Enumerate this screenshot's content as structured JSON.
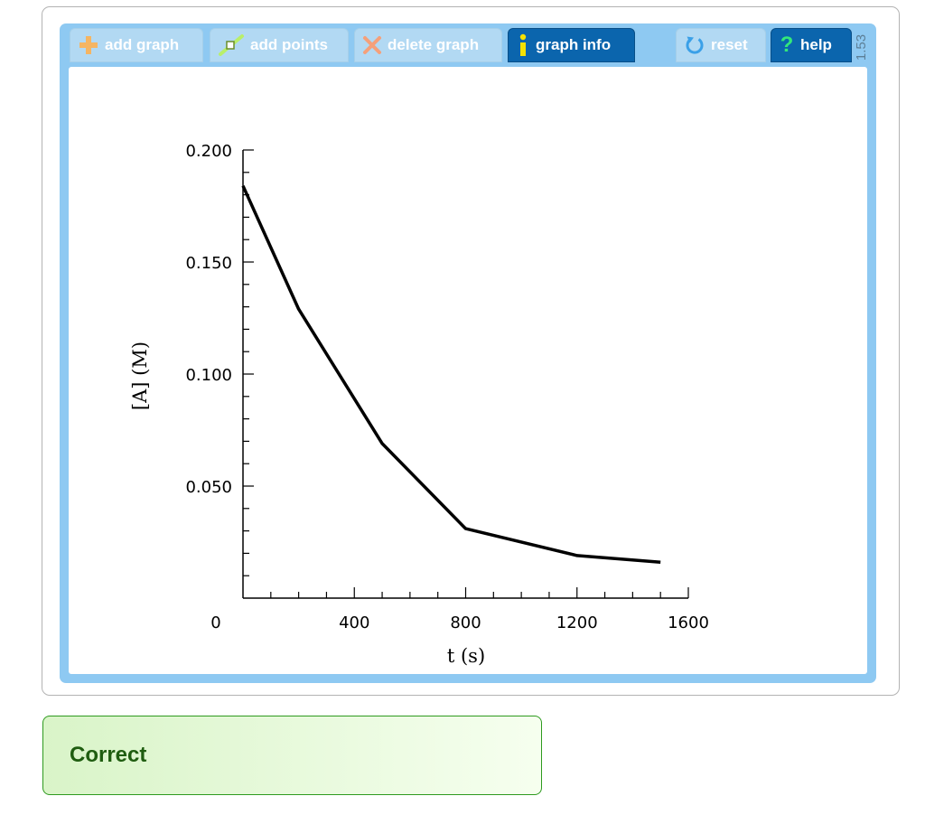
{
  "toolbar": {
    "buttons": [
      {
        "label": "add graph",
        "icon": "plus-icon",
        "state": "disabled"
      },
      {
        "label": "add points",
        "icon": "add-points-icon",
        "state": "disabled"
      },
      {
        "label": "delete graph",
        "icon": "x-icon",
        "state": "disabled"
      },
      {
        "label": "graph info",
        "icon": "info-icon",
        "state": "enabled"
      },
      {
        "label": "reset",
        "icon": "reset-icon",
        "state": "disabled"
      },
      {
        "label": "help",
        "icon": "question-icon",
        "state": "enabled"
      }
    ],
    "version": "1.53"
  },
  "colors": {
    "panel": "#8ec9f2",
    "active_button": "#0b65ad",
    "inactive_button": "#b2d9f3",
    "plus_icon": "#f5b562",
    "x_icon": "#f5a07a",
    "info_icon": "#f5e100",
    "question_icon": "#33e87a",
    "correct_border": "#2e9a1f",
    "correct_text": "#1f5d10"
  },
  "chart_data": {
    "type": "line",
    "xlabel": "t (s)",
    "ylabel": "[A] (M)",
    "x_ticks": [
      "0",
      "400",
      "800",
      "1200",
      "1600"
    ],
    "y_ticks": [
      "0.200",
      "0.150",
      "0.100",
      "0.050"
    ],
    "xlim": [
      0,
      1600
    ],
    "ylim": [
      0,
      0.2
    ],
    "series": [
      {
        "x": [
          0,
          200,
          500,
          800,
          1200,
          1500
        ],
        "y": [
          0.184,
          0.129,
          0.069,
          0.031,
          0.019,
          0.016
        ]
      }
    ],
    "grid": false
  },
  "feedback": {
    "text": "Correct"
  }
}
